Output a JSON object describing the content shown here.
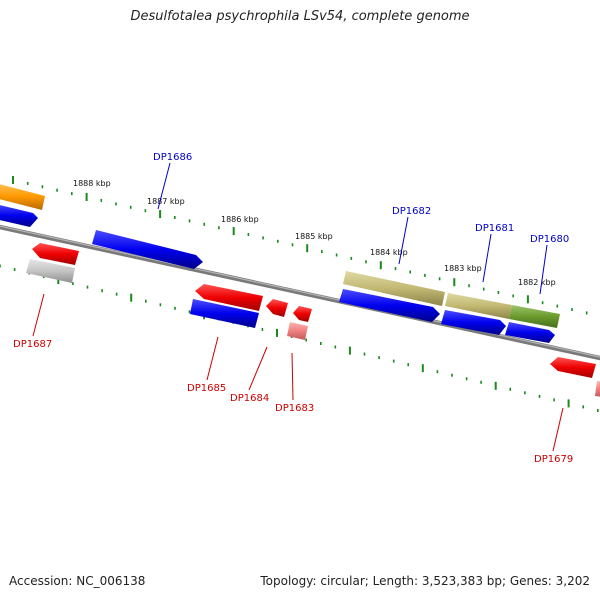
{
  "title": "Desulfotalea psychrophila LSv54, complete genome",
  "footer": {
    "accession": "Accession: NC_006138",
    "stats": "Topology: circular; Length: 3,523,383 bp; Genes: 3,202"
  },
  "colors": {
    "forward_label": "#0000cc",
    "reverse_label": "#cc0000",
    "tick": "#1a8a1a",
    "backbone": "#7a7a7a"
  },
  "scale_labels": [
    "1888 kbp",
    "1887 kbp",
    "1886 kbp",
    "1885 kbp",
    "1884 kbp",
    "1883 kbp",
    "1882 kbp"
  ],
  "gene_labels": {
    "DP1686": "DP1686",
    "DP1682": "DP1682",
    "DP1681": "DP1681",
    "DP1680": "DP1680",
    "DP1687": "DP1687",
    "DP1685": "DP1685",
    "DP1684": "DP1684",
    "DP1683": "DP1683",
    "DP1679": "DP1679"
  }
}
